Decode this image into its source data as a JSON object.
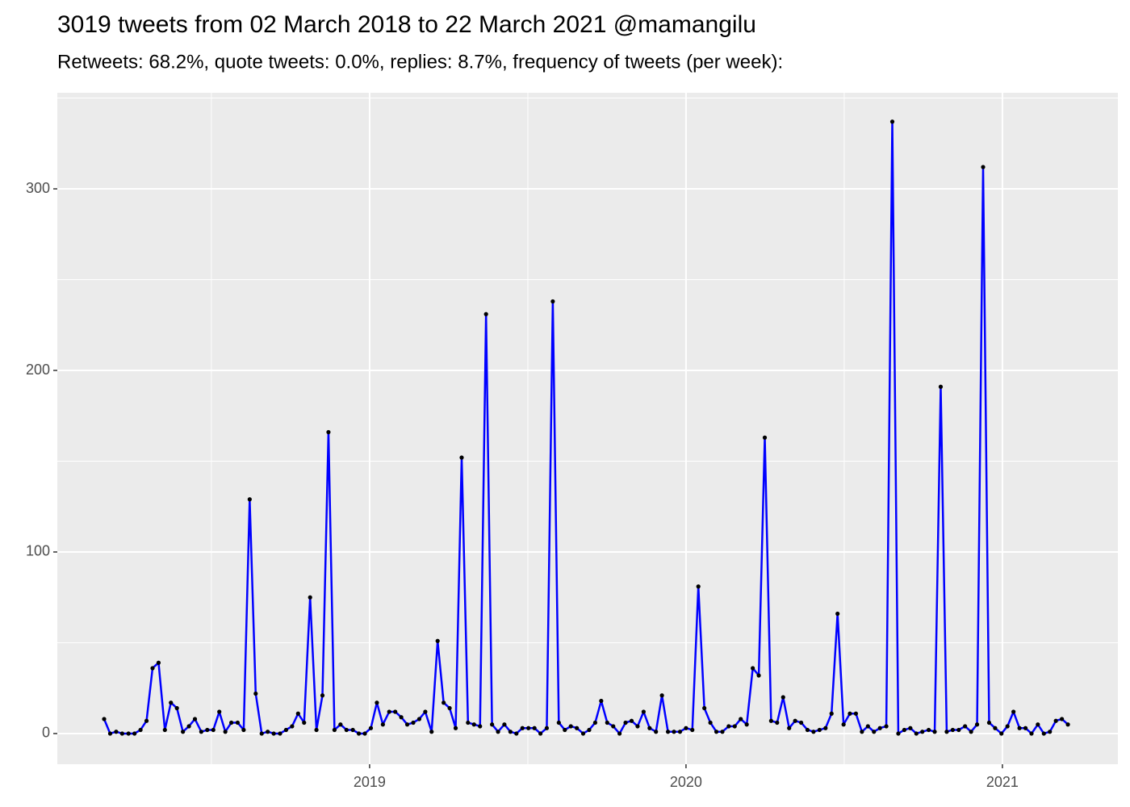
{
  "chart_data": {
    "type": "line",
    "title": "3019 tweets from 02 March 2018 to 22 March 2021 @mamangilu",
    "subtitle": "Retweets: 68.2%, quote tweets: 0.0%, replies: 8.7%, frequency of tweets (per week):",
    "x": [
      2018.161,
      2018.18,
      2018.199,
      2018.218,
      2018.238,
      2018.257,
      2018.276,
      2018.295,
      2018.314,
      2018.333,
      2018.353,
      2018.372,
      2018.391,
      2018.41,
      2018.429,
      2018.448,
      2018.468,
      2018.487,
      2018.506,
      2018.525,
      2018.544,
      2018.563,
      2018.583,
      2018.602,
      2018.621,
      2018.64,
      2018.659,
      2018.678,
      2018.697,
      2018.717,
      2018.736,
      2018.755,
      2018.774,
      2018.793,
      2018.812,
      2018.832,
      2018.851,
      2018.87,
      2018.889,
      2018.908,
      2018.927,
      2018.947,
      2018.966,
      2018.985,
      2019.004,
      2019.023,
      2019.042,
      2019.062,
      2019.081,
      2019.1,
      2019.119,
      2019.138,
      2019.157,
      2019.176,
      2019.196,
      2019.215,
      2019.234,
      2019.253,
      2019.272,
      2019.291,
      2019.311,
      2019.33,
      2019.349,
      2019.368,
      2019.387,
      2019.406,
      2019.426,
      2019.445,
      2019.464,
      2019.483,
      2019.502,
      2019.521,
      2019.54,
      2019.56,
      2019.579,
      2019.598,
      2019.617,
      2019.636,
      2019.655,
      2019.675,
      2019.694,
      2019.713,
      2019.732,
      2019.751,
      2019.77,
      2019.79,
      2019.809,
      2019.828,
      2019.847,
      2019.866,
      2019.885,
      2019.905,
      2019.924,
      2019.943,
      2019.962,
      2019.981,
      2020.0,
      2020.02,
      2020.039,
      2020.058,
      2020.077,
      2020.096,
      2020.115,
      2020.135,
      2020.154,
      2020.173,
      2020.192,
      2020.211,
      2020.23,
      2020.249,
      2020.269,
      2020.288,
      2020.307,
      2020.326,
      2020.345,
      2020.364,
      2020.384,
      2020.403,
      2020.422,
      2020.441,
      2020.46,
      2020.479,
      2020.498,
      2020.518,
      2020.537,
      2020.556,
      2020.575,
      2020.594,
      2020.613,
      2020.633,
      2020.652,
      2020.671,
      2020.69,
      2020.709,
      2020.728,
      2020.747,
      2020.767,
      2020.786,
      2020.805,
      2020.824,
      2020.843,
      2020.862,
      2020.882,
      2020.901,
      2020.92,
      2020.939,
      2020.958,
      2020.977,
      2020.997,
      2021.016,
      2021.035,
      2021.054,
      2021.073,
      2021.092,
      2021.112,
      2021.131,
      2021.15,
      2021.169,
      2021.188,
      2021.207
    ],
    "values": [
      8,
      0,
      1,
      0,
      0,
      0,
      2,
      7,
      36,
      39,
      2,
      17,
      14,
      1,
      4,
      8,
      1,
      2,
      2,
      12,
      1,
      6,
      6,
      2,
      129,
      22,
      0,
      1,
      0,
      0,
      2,
      4,
      11,
      6,
      75,
      2,
      21,
      166,
      2,
      5,
      2,
      2,
      0,
      0,
      3,
      17,
      5,
      12,
      12,
      9,
      5,
      6,
      8,
      12,
      1,
      51,
      17,
      14,
      3,
      152,
      6,
      5,
      4,
      231,
      5,
      1,
      5,
      1,
      0,
      3,
      3,
      3,
      0,
      3,
      238,
      6,
      2,
      4,
      3,
      0,
      2,
      6,
      18,
      6,
      4,
      0,
      6,
      7,
      4,
      12,
      3,
      1,
      21,
      1,
      1,
      1,
      3,
      2,
      81,
      14,
      6,
      1,
      1,
      4,
      4,
      8,
      5,
      36,
      32,
      163,
      7,
      6,
      20,
      3,
      7,
      6,
      2,
      1,
      2,
      3,
      11,
      66,
      5,
      11,
      11,
      1,
      4,
      1,
      3,
      4,
      337,
      0,
      2,
      3,
      0,
      1,
      2,
      1,
      191,
      1,
      2,
      2,
      4,
      1,
      5,
      312,
      6,
      3,
      0,
      4,
      12,
      3,
      3,
      0,
      5,
      0,
      1,
      7,
      8,
      5
    ],
    "color": "#0000ff",
    "point_color": "#000000",
    "xlim": [
      2018.013,
      2021.365
    ],
    "xticks": [
      2019,
      2020,
      2021
    ],
    "ylim": [
      -16.9,
      352.9
    ],
    "yticks": [
      0,
      100,
      200,
      300
    ],
    "grid": true
  }
}
